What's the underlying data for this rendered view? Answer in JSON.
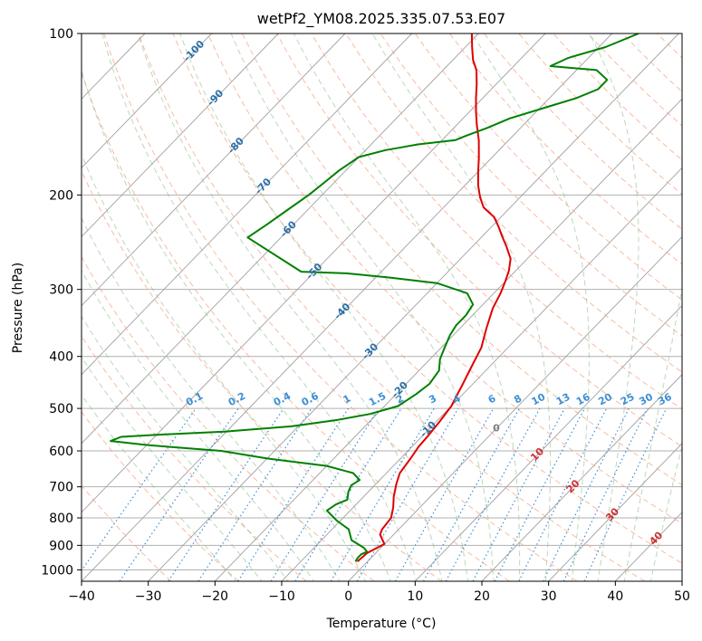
{
  "chart_data": {
    "type": "line",
    "subtype": "skew-t log-p diagram",
    "title": "wetPf2_YM08.2025.335.07.53.E07",
    "xlabel": "Temperature (°C)",
    "ylabel": "Pressure (hPa)",
    "xlim": [
      -40,
      50
    ],
    "ylim": [
      1050,
      100
    ],
    "y_scale": "log",
    "x_ticks": [
      -40,
      -30,
      -20,
      -10,
      0,
      10,
      20,
      30,
      40,
      50
    ],
    "y_ticks": [
      100,
      200,
      300,
      400,
      500,
      600,
      700,
      800,
      900,
      1000
    ],
    "grid": true,
    "series": [
      {
        "role": "temperature",
        "color": "#e00000",
        "points": [
          [
            -1.5,
            965
          ],
          [
            -1.3,
            930
          ],
          [
            0,
            895
          ],
          [
            -2,
            860
          ],
          [
            -2.5,
            840
          ],
          [
            -2.8,
            800
          ],
          [
            -4,
            765
          ],
          [
            -5.5,
            730
          ],
          [
            -7,
            690
          ],
          [
            -8,
            660
          ],
          [
            -8.5,
            620
          ],
          [
            -9,
            590
          ],
          [
            -9.2,
            560
          ],
          [
            -9.5,
            530
          ],
          [
            -10,
            495
          ],
          [
            -11.5,
            450
          ],
          [
            -13,
            410
          ],
          [
            -14,
            385
          ],
          [
            -16,
            355
          ],
          [
            -18,
            325
          ],
          [
            -19,
            305
          ],
          [
            -20,
            290
          ],
          [
            -21,
            277
          ],
          [
            -22.5,
            263
          ],
          [
            -25,
            249
          ],
          [
            -27,
            239
          ],
          [
            -29,
            229
          ],
          [
            -31,
            220
          ],
          [
            -34,
            211
          ],
          [
            -36,
            202
          ],
          [
            -38,
            192
          ],
          [
            -40,
            181
          ],
          [
            -42,
            170
          ],
          [
            -44.5,
            158
          ],
          [
            -47,
            148
          ],
          [
            -49,
            140
          ],
          [
            -51,
            132
          ],
          [
            -53,
            124
          ],
          [
            -55,
            117
          ],
          [
            -57,
            112
          ],
          [
            -59,
            106
          ],
          [
            -61,
            100
          ]
        ]
      },
      {
        "role": "dewpoint",
        "color": "#008000",
        "points": [
          [
            -1.8,
            965
          ],
          [
            -2,
            950
          ],
          [
            -2,
            935
          ],
          [
            -1.5,
            925
          ],
          [
            -2.5,
            910
          ],
          [
            -4,
            895
          ],
          [
            -5.5,
            880
          ],
          [
            -6.5,
            860
          ],
          [
            -7.5,
            840
          ],
          [
            -10.5,
            810
          ],
          [
            -13.5,
            775
          ],
          [
            -13,
            755
          ],
          [
            -12,
            740
          ],
          [
            -13,
            715
          ],
          [
            -13.5,
            695
          ],
          [
            -13,
            680
          ],
          [
            -15,
            660
          ],
          [
            -20,
            640
          ],
          [
            -30,
            620
          ],
          [
            -38,
            600
          ],
          [
            -46,
            590
          ],
          [
            -50,
            585
          ],
          [
            -56,
            575
          ],
          [
            -55,
            565
          ],
          [
            -50,
            560
          ],
          [
            -40,
            552
          ],
          [
            -31,
            540
          ],
          [
            -25,
            525
          ],
          [
            -21,
            512
          ],
          [
            -18,
            495
          ],
          [
            -17,
            470
          ],
          [
            -16.5,
            450
          ],
          [
            -17,
            425
          ],
          [
            -18.5,
            405
          ],
          [
            -19.5,
            385
          ],
          [
            -20.5,
            365
          ],
          [
            -21,
            350
          ],
          [
            -21,
            335
          ],
          [
            -21.5,
            320
          ],
          [
            -24,
            305
          ],
          [
            -30,
            292
          ],
          [
            -38,
            285
          ],
          [
            -45,
            280
          ],
          [
            -52,
            278
          ],
          [
            -65,
            240
          ],
          [
            -64,
            227
          ],
          [
            -63,
            213
          ],
          [
            -62,
            200
          ],
          [
            -61.5,
            190
          ],
          [
            -61,
            180
          ],
          [
            -60,
            170
          ],
          [
            -57,
            165
          ],
          [
            -55,
            163
          ],
          [
            -53,
            161
          ],
          [
            -48,
            158
          ],
          [
            -47,
            155
          ],
          [
            -45,
            150
          ],
          [
            -43,
            144
          ],
          [
            -39,
            137
          ],
          [
            -36,
            132
          ],
          [
            -34,
            127
          ],
          [
            -34,
            122
          ],
          [
            -37,
            117
          ],
          [
            -44.5,
            115
          ],
          [
            -43,
            111
          ],
          [
            -39,
            106
          ],
          [
            -36,
            100
          ]
        ]
      }
    ],
    "background_lines": {
      "isotherms_gray": {
        "color": "#a0a0a0",
        "style": "solid"
      },
      "dry_adiabats": {
        "color": "#f4a582",
        "style": "dashed"
      },
      "moist_adiabats": {
        "color": "#8fbc8f",
        "style": "dashed"
      },
      "mixing_ratio": {
        "color": "#3c8fd6",
        "style": "dotted"
      }
    },
    "label_sets": {
      "isotherm_labels": {
        "color": "#2a6fa8",
        "items": [
          {
            "text": "-100",
            "t": -100,
            "p": 108
          },
          {
            "text": "-90",
            "t": -90,
            "p": 132
          },
          {
            "text": "-80",
            "t": -80,
            "p": 162
          },
          {
            "text": "-70",
            "t": -70,
            "p": 193
          },
          {
            "text": "-60",
            "t": -60,
            "p": 232
          },
          {
            "text": "-50",
            "t": -50,
            "p": 278
          },
          {
            "text": "-40",
            "t": -40,
            "p": 330
          },
          {
            "text": "-30",
            "t": -30,
            "p": 392
          },
          {
            "text": "-20",
            "t": -20,
            "p": 462
          },
          {
            "text": "-10",
            "t": -10,
            "p": 548
          }
        ]
      },
      "mixing_ratio_labels": {
        "color": "#3c8fd6",
        "items": [
          "0.1",
          "0.2",
          "0.4",
          "0.6",
          "1",
          "1.5",
          "2",
          "3",
          "4",
          "6",
          "8",
          "10",
          "13",
          "16",
          "20",
          "25",
          "30",
          "36"
        ]
      },
      "red_labels": {
        "color": "#d03030",
        "items": [
          {
            "text": "10",
            "t": 10,
            "p": 610
          },
          {
            "text": "20",
            "t": 20,
            "p": 700
          },
          {
            "text": "30",
            "t": 30,
            "p": 790
          },
          {
            "text": "40",
            "t": 40,
            "p": 875
          }
        ]
      },
      "zero_label": {
        "text": "0",
        "color": "#808080",
        "t": 0,
        "p": 545
      }
    }
  }
}
